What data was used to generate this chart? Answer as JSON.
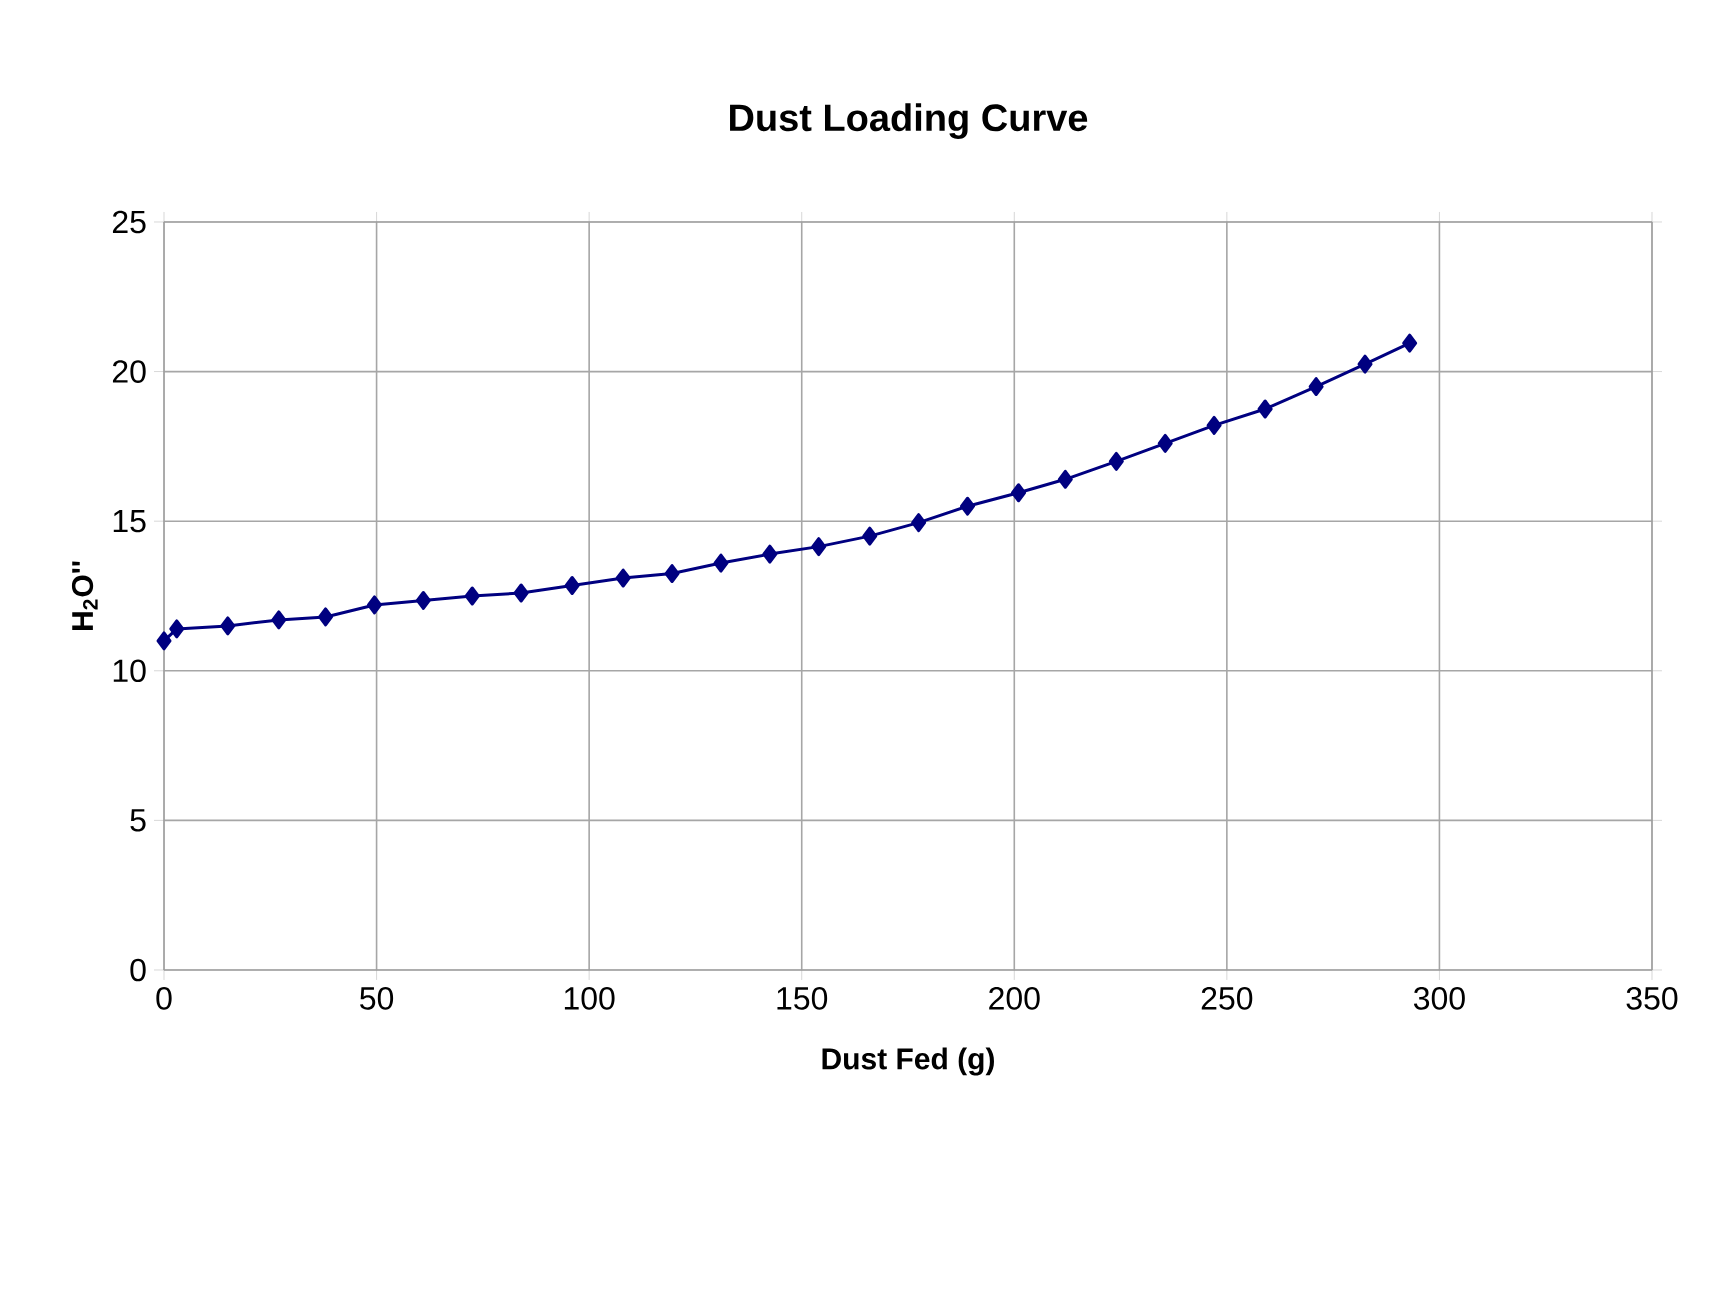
{
  "chart_data": {
    "type": "line",
    "title": "Dust Loading Curve",
    "xlabel": "Dust Fed (g)",
    "ylabel": "H$_{2}$O''",
    "xlim": [
      0,
      350
    ],
    "xticks": [
      0,
      50,
      100,
      150,
      200,
      250,
      300,
      350
    ],
    "ylim": [
      0,
      25
    ],
    "yticks": [
      0,
      5,
      10,
      15,
      20,
      25
    ],
    "grid": true,
    "marker": "diamond",
    "line_style": "solid",
    "series": [
      {
        "color": "#000080",
        "x": [
          0,
          3,
          15,
          27,
          38,
          49.5,
          61,
          72.5,
          84,
          96,
          108,
          119.5,
          131,
          142.5,
          154,
          166,
          177.5,
          189,
          201,
          212,
          224,
          235.5,
          247,
          259,
          271,
          282.5,
          293
        ],
        "values": [
          11.0,
          11.4,
          11.5,
          11.7,
          11.8,
          12.2,
          12.35,
          12.5,
          12.6,
          12.85,
          13.1,
          13.25,
          13.6,
          13.9,
          14.15,
          14.5,
          14.95,
          15.5,
          15.95,
          16.4,
          17.0,
          17.6,
          18.2,
          18.75,
          19.5,
          20.25,
          20.95
        ]
      }
    ]
  }
}
